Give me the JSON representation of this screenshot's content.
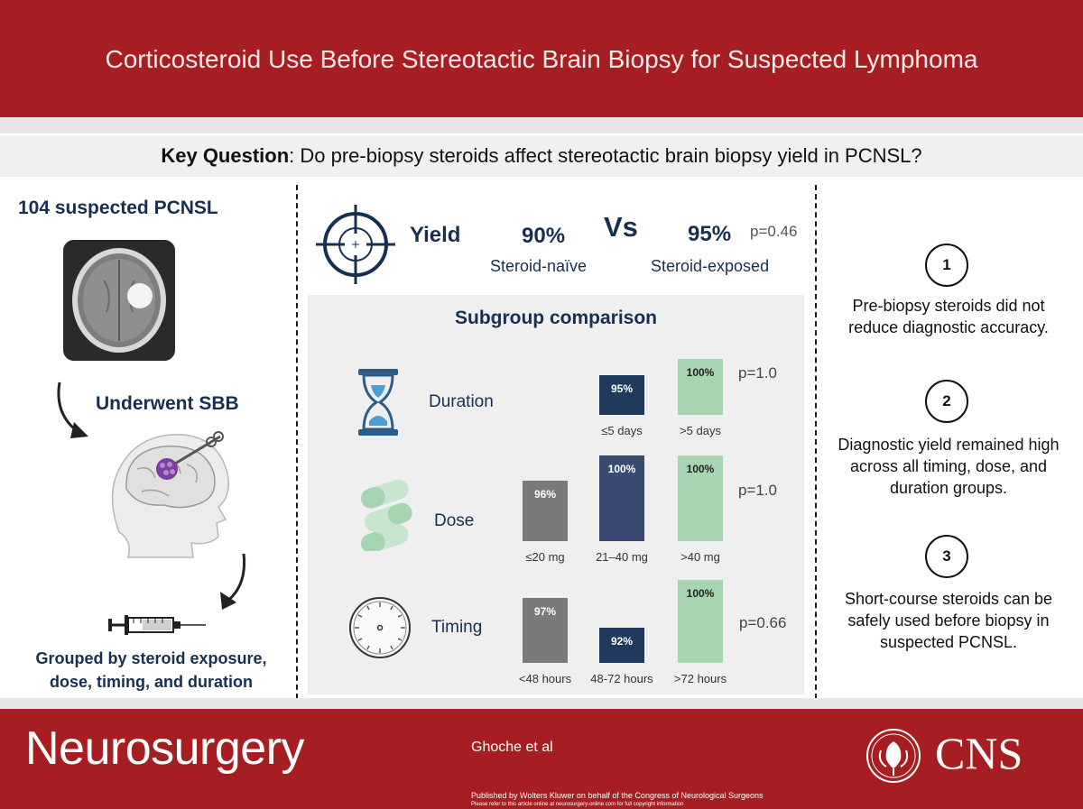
{
  "header": {
    "title": "Corticosteroid Use Before Stereotactic Brain Biopsy for Suspected Lymphoma"
  },
  "key_question": {
    "label": "Key Question",
    "text": ": Do pre-biopsy steroids affect stereotactic brain biopsy yield in PCNSL?"
  },
  "left_panel": {
    "title": "104 suspected PCNSL",
    "sbb_label": "Underwent SBB",
    "grouped_line1": "Grouped by steroid exposure,",
    "grouped_line2": "dose, timing, and duration"
  },
  "yield": {
    "label": "Yield",
    "naive_pct": "90%",
    "vs": "Vs",
    "exposed_pct": "95%",
    "p_value": "p=0.46",
    "naive_label": "Steroid-naïve",
    "exposed_label": "Steroid-exposed"
  },
  "subgroup": {
    "title": "Subgroup comparison",
    "rows": [
      {
        "label": "Duration",
        "p_value": "p=1.0",
        "bars": [
          {
            "category": "≤5 days",
            "value": 95,
            "display": "95%",
            "color": "#1f3a5c"
          },
          {
            "category": ">5 days",
            "value": 100,
            "display": "100%",
            "color": "#a8d5b1"
          }
        ]
      },
      {
        "label": "Dose",
        "p_value": "p=1.0",
        "bars": [
          {
            "category": "≤20 mg",
            "value": 96,
            "display": "96%",
            "color": "#7a7a7a"
          },
          {
            "category": "21–40 mg",
            "value": 100,
            "display": "100%",
            "color": "#3b4a72"
          },
          {
            "category": ">40 mg",
            "value": 100,
            "display": "100%",
            "color": "#a8d5b1"
          }
        ]
      },
      {
        "label": "Timing",
        "p_value": "p=0.66",
        "bars": [
          {
            "category": "<48 hours",
            "value": 97,
            "display": "97%",
            "color": "#7a7a7a"
          },
          {
            "category": "48-72 hours",
            "value": 92,
            "display": "92%",
            "color": "#1f3a5c"
          },
          {
            "category": ">72 hours",
            "value": 100,
            "display": "100%",
            "color": "#a8d5b1"
          }
        ]
      }
    ]
  },
  "takeaways": [
    {
      "number": "1",
      "line1": "Pre-biopsy steroids did not",
      "line2": "reduce diagnostic accuracy.",
      "line3": ""
    },
    {
      "number": "2",
      "line1": "Diagnostic yield remained high",
      "line2": "across all timing, dose, and",
      "line3": "duration groups."
    },
    {
      "number": "3",
      "line1": "Short-course steroids can be",
      "line2": "safely used before biopsy in",
      "line3": "suspected PCNSL."
    }
  ],
  "footer": {
    "journal": "Neurosurgery",
    "authors": "Ghoche et al",
    "published": "Published by Wolters Kluwer on behalf of the Congress of Neurological Surgeons",
    "copyright": "Please refer to this article online at neurosurgery-online.com for full copyright information",
    "cns": "CNS"
  },
  "colors": {
    "brand_red": "#a71e22",
    "navy": "#17304f",
    "green": "#a8d5b1"
  },
  "icons": [
    "target-icon",
    "hourglass-icon",
    "pills-icon",
    "clock-icon",
    "syringe-icon",
    "brain-head-icon",
    "mri-scan-icon",
    "cns-logo-icon"
  ]
}
